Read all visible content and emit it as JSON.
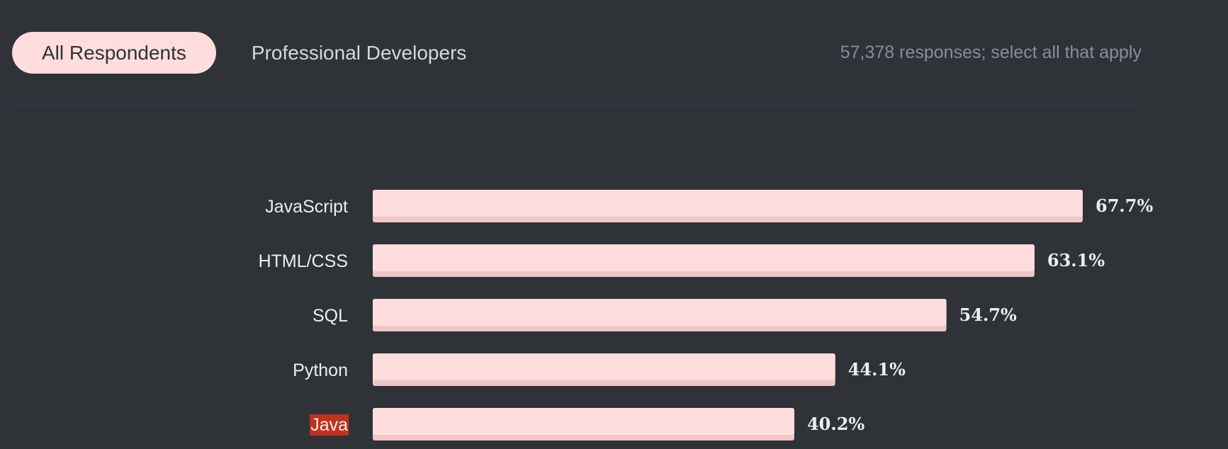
{
  "tabs": [
    {
      "label": "All Respondents",
      "active": true
    },
    {
      "label": "Professional Developers",
      "active": false
    }
  ],
  "meta": {
    "responses_text": "57,378 responses; select all that apply"
  },
  "colors": {
    "background": "#2f3237",
    "bar": "#ffdddd",
    "bar_shadow": "#f0c6c6",
    "highlight": "#c0321d",
    "text": "#eceef0"
  },
  "chart_data": {
    "type": "bar",
    "orientation": "horizontal",
    "categories": [
      "JavaScript",
      "HTML/CSS",
      "SQL",
      "Python",
      "Java"
    ],
    "values": [
      67.7,
      63.1,
      54.7,
      44.1,
      40.2
    ],
    "value_labels": [
      "67.7%",
      "63.1%",
      "54.7%",
      "44.1%",
      "40.2%"
    ],
    "unit": "%",
    "highlighted_category": "Java",
    "xlim": [
      0,
      67.7
    ],
    "grid": false,
    "legend": "none"
  }
}
